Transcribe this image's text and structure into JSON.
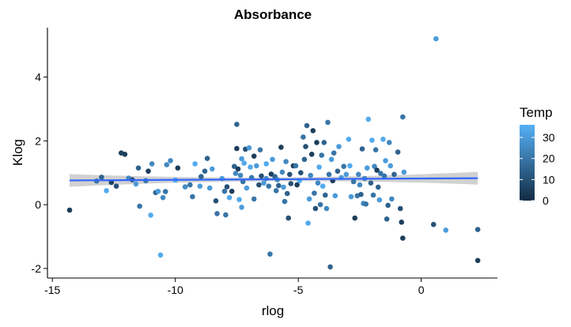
{
  "chart_data": {
    "type": "scatter",
    "title": "Absorbance",
    "xlabel": "rlog",
    "ylabel": "Klog",
    "xlim": [
      -15.2,
      3.1
    ],
    "ylim": [
      -2.3,
      5.55
    ],
    "x_ticks": [
      -15,
      -10,
      -5,
      0
    ],
    "y_ticks": [
      -2,
      0,
      2,
      4
    ],
    "grid": false,
    "point_color_scale": {
      "low": "#132B43",
      "high": "#56B1F7"
    },
    "smooth": {
      "type": "linear",
      "color": "#3366FF",
      "band_color": "#BDBDBD",
      "x": [
        -14.3,
        2.3
      ],
      "y": [
        0.76,
        0.83
      ],
      "band_halfwidth_ends": 0.2,
      "band_halfwidth_mid": 0.06
    },
    "legend": {
      "title": "Temp",
      "placement": "right",
      "ticks": [
        0,
        10,
        20,
        30
      ],
      "range": [
        0,
        36
      ]
    },
    "points": [
      {
        "x": -14.3,
        "y": -0.17,
        "temp": 5
      },
      {
        "x": -13.2,
        "y": 0.74,
        "temp": 20
      },
      {
        "x": -13.0,
        "y": 0.86,
        "temp": 15
      },
      {
        "x": -12.8,
        "y": 0.44,
        "temp": 34
      },
      {
        "x": -12.6,
        "y": 0.7,
        "temp": 5
      },
      {
        "x": -12.4,
        "y": 0.58,
        "temp": 10
      },
      {
        "x": -12.2,
        "y": 1.62,
        "temp": 5
      },
      {
        "x": -12.05,
        "y": 1.58,
        "temp": 5
      },
      {
        "x": -11.9,
        "y": 0.83,
        "temp": 25
      },
      {
        "x": -11.75,
        "y": 0.78,
        "temp": 10
      },
      {
        "x": -11.6,
        "y": 0.65,
        "temp": 30
      },
      {
        "x": -11.5,
        "y": 1.15,
        "temp": 15
      },
      {
        "x": -11.45,
        "y": -0.05,
        "temp": 20
      },
      {
        "x": -11.2,
        "y": 0.75,
        "temp": 20
      },
      {
        "x": -11.1,
        "y": 1.05,
        "temp": 5
      },
      {
        "x": -11.0,
        "y": -0.33,
        "temp": 34
      },
      {
        "x": -10.95,
        "y": 1.28,
        "temp": 25
      },
      {
        "x": -10.8,
        "y": 0.38,
        "temp": 15
      },
      {
        "x": -10.7,
        "y": 0.42,
        "temp": 30
      },
      {
        "x": -10.6,
        "y": -1.58,
        "temp": 34
      },
      {
        "x": -10.5,
        "y": 0.22,
        "temp": 25
      },
      {
        "x": -10.4,
        "y": 0.41,
        "temp": 20
      },
      {
        "x": -10.35,
        "y": 1.25,
        "temp": 25
      },
      {
        "x": -10.2,
        "y": 1.38,
        "temp": 25
      },
      {
        "x": -10.0,
        "y": 0.77,
        "temp": 34
      },
      {
        "x": -9.9,
        "y": 1.15,
        "temp": 5
      },
      {
        "x": -9.6,
        "y": 0.56,
        "temp": 25
      },
      {
        "x": -9.4,
        "y": 0.62,
        "temp": 20
      },
      {
        "x": -9.3,
        "y": 0.25,
        "temp": 20
      },
      {
        "x": -9.2,
        "y": 1.28,
        "temp": 34
      },
      {
        "x": -9.0,
        "y": 0.58,
        "temp": 30
      },
      {
        "x": -8.95,
        "y": 0.88,
        "temp": 15
      },
      {
        "x": -8.8,
        "y": 1.05,
        "temp": 15
      },
      {
        "x": -8.7,
        "y": 1.45,
        "temp": 15
      },
      {
        "x": -8.6,
        "y": 0.52,
        "temp": 30
      },
      {
        "x": -8.5,
        "y": 1.12,
        "temp": 30
      },
      {
        "x": -8.35,
        "y": 0.12,
        "temp": 10
      },
      {
        "x": -8.3,
        "y": -0.28,
        "temp": 20
      },
      {
        "x": -8.1,
        "y": 0.82,
        "temp": 30
      },
      {
        "x": -8.0,
        "y": 0.42,
        "temp": 20
      },
      {
        "x": -7.95,
        "y": -0.32,
        "temp": 20
      },
      {
        "x": -7.9,
        "y": 0.56,
        "temp": 10
      },
      {
        "x": -7.8,
        "y": 0.22,
        "temp": 34
      },
      {
        "x": -7.7,
        "y": 0.42,
        "temp": 5
      },
      {
        "x": -7.6,
        "y": 1.2,
        "temp": 15
      },
      {
        "x": -7.55,
        "y": 0.98,
        "temp": 25
      },
      {
        "x": -7.5,
        "y": 1.76,
        "temp": 5
      },
      {
        "x": -7.5,
        "y": 2.52,
        "temp": 15
      },
      {
        "x": -7.45,
        "y": 1.12,
        "temp": 5
      },
      {
        "x": -7.4,
        "y": 0.16,
        "temp": 34
      },
      {
        "x": -7.35,
        "y": 0.92,
        "temp": 25
      },
      {
        "x": -7.3,
        "y": 1.44,
        "temp": 30
      },
      {
        "x": -7.3,
        "y": -0.08,
        "temp": 30
      },
      {
        "x": -7.25,
        "y": 0.72,
        "temp": 20
      },
      {
        "x": -7.2,
        "y": 1.3,
        "temp": 34
      },
      {
        "x": -7.15,
        "y": 1.74,
        "temp": 10
      },
      {
        "x": -7.1,
        "y": 0.52,
        "temp": 30
      },
      {
        "x": -7.0,
        "y": 1.78,
        "temp": 30
      },
      {
        "x": -6.95,
        "y": 1.18,
        "temp": 34
      },
      {
        "x": -6.9,
        "y": 0.85,
        "temp": 20
      },
      {
        "x": -6.8,
        "y": 0.18,
        "temp": 20
      },
      {
        "x": -6.8,
        "y": 1.52,
        "temp": 5
      },
      {
        "x": -6.7,
        "y": 1.22,
        "temp": 30
      },
      {
        "x": -6.6,
        "y": 0.62,
        "temp": 10
      },
      {
        "x": -6.55,
        "y": 1.72,
        "temp": 20
      },
      {
        "x": -6.5,
        "y": 0.9,
        "temp": 10
      },
      {
        "x": -6.4,
        "y": 0.68,
        "temp": 30
      },
      {
        "x": -6.3,
        "y": 1.28,
        "temp": 34
      },
      {
        "x": -6.3,
        "y": 0.82,
        "temp": 25
      },
      {
        "x": -6.2,
        "y": 0.58,
        "temp": 20
      },
      {
        "x": -6.15,
        "y": -1.55,
        "temp": 20
      },
      {
        "x": -6.1,
        "y": 0.96,
        "temp": 5
      },
      {
        "x": -6.05,
        "y": 1.42,
        "temp": 30
      },
      {
        "x": -5.95,
        "y": 0.88,
        "temp": 15
      },
      {
        "x": -5.9,
        "y": 0.44,
        "temp": 20
      },
      {
        "x": -5.85,
        "y": 0.78,
        "temp": 25
      },
      {
        "x": -5.8,
        "y": 0.6,
        "temp": 15
      },
      {
        "x": -5.7,
        "y": 1.8,
        "temp": 5
      },
      {
        "x": -5.65,
        "y": 1.02,
        "temp": 25
      },
      {
        "x": -5.6,
        "y": 0.55,
        "temp": 30
      },
      {
        "x": -5.55,
        "y": 0.1,
        "temp": 20
      },
      {
        "x": -5.5,
        "y": 1.35,
        "temp": 25
      },
      {
        "x": -5.45,
        "y": 0.35,
        "temp": 15
      },
      {
        "x": -5.4,
        "y": -0.42,
        "temp": 10
      },
      {
        "x": -5.35,
        "y": 0.95,
        "temp": 10
      },
      {
        "x": -5.3,
        "y": 0.66,
        "temp": 10
      },
      {
        "x": -5.2,
        "y": 1.22,
        "temp": 5
      },
      {
        "x": -5.1,
        "y": 1.22,
        "temp": 20
      },
      {
        "x": -5.05,
        "y": 0.62,
        "temp": 5
      },
      {
        "x": -4.95,
        "y": 0.75,
        "temp": 34
      },
      {
        "x": -4.9,
        "y": 1.0,
        "temp": 10
      },
      {
        "x": -4.8,
        "y": 2.12,
        "temp": 20
      },
      {
        "x": -4.75,
        "y": 1.42,
        "temp": 15
      },
      {
        "x": -4.7,
        "y": 1.82,
        "temp": 10
      },
      {
        "x": -4.65,
        "y": 2.48,
        "temp": 15
      },
      {
        "x": -4.6,
        "y": -0.58,
        "temp": 34
      },
      {
        "x": -4.55,
        "y": 0.18,
        "temp": 30
      },
      {
        "x": -4.5,
        "y": 0.92,
        "temp": 25
      },
      {
        "x": -4.45,
        "y": 1.58,
        "temp": 5
      },
      {
        "x": -4.4,
        "y": 2.32,
        "temp": 5
      },
      {
        "x": -4.35,
        "y": 0.36,
        "temp": 20
      },
      {
        "x": -4.3,
        "y": -0.12,
        "temp": 10
      },
      {
        "x": -4.25,
        "y": 1.95,
        "temp": 5
      },
      {
        "x": -4.2,
        "y": 0.68,
        "temp": 25
      },
      {
        "x": -4.15,
        "y": 1.18,
        "temp": 34
      },
      {
        "x": -4.1,
        "y": 0.0,
        "temp": 20
      },
      {
        "x": -4.05,
        "y": 1.55,
        "temp": 20
      },
      {
        "x": -4.0,
        "y": 0.58,
        "temp": 34
      },
      {
        "x": -3.95,
        "y": 1.95,
        "temp": 15
      },
      {
        "x": -3.9,
        "y": 0.3,
        "temp": 15
      },
      {
        "x": -3.85,
        "y": -0.12,
        "temp": 25
      },
      {
        "x": -3.8,
        "y": 2.58,
        "temp": 20
      },
      {
        "x": -3.75,
        "y": 0.95,
        "temp": 20
      },
      {
        "x": -3.7,
        "y": -1.95,
        "temp": 15
      },
      {
        "x": -3.65,
        "y": 1.42,
        "temp": 30
      },
      {
        "x": -3.6,
        "y": 0.75,
        "temp": 5
      },
      {
        "x": -3.55,
        "y": 1.62,
        "temp": 20
      },
      {
        "x": -3.5,
        "y": 0.28,
        "temp": 30
      },
      {
        "x": -3.4,
        "y": 1.05,
        "temp": 15
      },
      {
        "x": -3.35,
        "y": 1.82,
        "temp": 30
      },
      {
        "x": -3.25,
        "y": 0.85,
        "temp": 30
      },
      {
        "x": -3.15,
        "y": 1.2,
        "temp": 20
      },
      {
        "x": -3.05,
        "y": 0.95,
        "temp": 30
      },
      {
        "x": -2.95,
        "y": 2.05,
        "temp": 34
      },
      {
        "x": -2.9,
        "y": 1.22,
        "temp": 34
      },
      {
        "x": -2.85,
        "y": 0.25,
        "temp": 30
      },
      {
        "x": -2.75,
        "y": 0.72,
        "temp": 20
      },
      {
        "x": -2.7,
        "y": -0.42,
        "temp": 5
      },
      {
        "x": -2.6,
        "y": 0.28,
        "temp": 20
      },
      {
        "x": -2.55,
        "y": 0.95,
        "temp": 25
      },
      {
        "x": -2.5,
        "y": 0.62,
        "temp": 25
      },
      {
        "x": -2.45,
        "y": 0.32,
        "temp": 15
      },
      {
        "x": -2.4,
        "y": 1.75,
        "temp": 15
      },
      {
        "x": -2.35,
        "y": 0.04,
        "temp": 25
      },
      {
        "x": -2.3,
        "y": 0.82,
        "temp": 25
      },
      {
        "x": -2.25,
        "y": 0.02,
        "temp": 20
      },
      {
        "x": -2.2,
        "y": 1.15,
        "temp": 30
      },
      {
        "x": -2.15,
        "y": 2.68,
        "temp": 34
      },
      {
        "x": -2.05,
        "y": 0.68,
        "temp": 15
      },
      {
        "x": -2.0,
        "y": 2.02,
        "temp": 34
      },
      {
        "x": -1.95,
        "y": 0.3,
        "temp": 20
      },
      {
        "x": -1.9,
        "y": 1.2,
        "temp": 25
      },
      {
        "x": -1.85,
        "y": 1.72,
        "temp": 20
      },
      {
        "x": -1.8,
        "y": 1.08,
        "temp": 5
      },
      {
        "x": -1.75,
        "y": 0.55,
        "temp": 15
      },
      {
        "x": -1.7,
        "y": 0.15,
        "temp": 30
      },
      {
        "x": -1.65,
        "y": 0.98,
        "temp": 20
      },
      {
        "x": -1.55,
        "y": 2.05,
        "temp": 34
      },
      {
        "x": -1.5,
        "y": 0.9,
        "temp": 20
      },
      {
        "x": -1.45,
        "y": 1.38,
        "temp": 30
      },
      {
        "x": -1.4,
        "y": -0.45,
        "temp": 15
      },
      {
        "x": -1.35,
        "y": -0.02,
        "temp": 15
      },
      {
        "x": -1.3,
        "y": 1.95,
        "temp": 25
      },
      {
        "x": -1.25,
        "y": 1.22,
        "temp": 30
      },
      {
        "x": -1.2,
        "y": 0.18,
        "temp": 25
      },
      {
        "x": -1.1,
        "y": 0.95,
        "temp": 15
      },
      {
        "x": -0.95,
        "y": 1.65,
        "temp": 15
      },
      {
        "x": -0.85,
        "y": -0.12,
        "temp": 10
      },
      {
        "x": -0.8,
        "y": -0.55,
        "temp": 5
      },
      {
        "x": -0.75,
        "y": 2.75,
        "temp": 20
      },
      {
        "x": -0.7,
        "y": 1.02,
        "temp": 30
      },
      {
        "x": -0.75,
        "y": -1.05,
        "temp": 5
      },
      {
        "x": 0.5,
        "y": -0.62,
        "temp": 10
      },
      {
        "x": 0.6,
        "y": 5.2,
        "temp": 30
      },
      {
        "x": 1.0,
        "y": -0.8,
        "temp": 30
      },
      {
        "x": 2.3,
        "y": -0.78,
        "temp": 15
      },
      {
        "x": 2.3,
        "y": -1.75,
        "temp": 5
      }
    ]
  }
}
